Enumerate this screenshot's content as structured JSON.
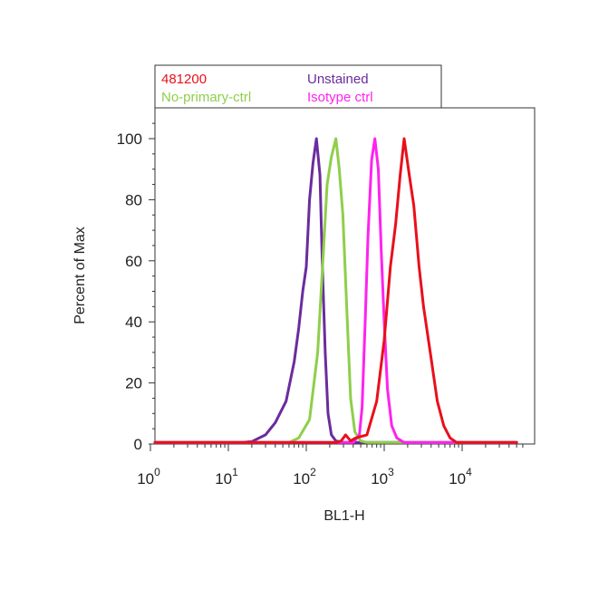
{
  "chart_data": {
    "type": "line",
    "xlabel": "BL1-H",
    "ylabel": "Percent of Max",
    "x_scale": "log",
    "xlim": [
      1,
      60000
    ],
    "ylim": [
      0,
      110
    ],
    "x_ticks": [
      {
        "value": 1,
        "base": "10",
        "exp": "0"
      },
      {
        "value": 10,
        "base": "10",
        "exp": "1"
      },
      {
        "value": 100,
        "base": "10",
        "exp": "2"
      },
      {
        "value": 1000,
        "base": "10",
        "exp": "3"
      },
      {
        "value": 10000,
        "base": "10",
        "exp": "4"
      }
    ],
    "y_ticks": [
      {
        "value": 0,
        "label": "0"
      },
      {
        "value": 20,
        "label": "20"
      },
      {
        "value": 40,
        "label": "40"
      },
      {
        "value": 60,
        "label": "60"
      },
      {
        "value": 80,
        "label": "80"
      },
      {
        "value": 100,
        "label": "100"
      }
    ],
    "legend_placement": "top",
    "series": [
      {
        "name": "Unstained",
        "color": "#6a2c9e",
        "points": [
          [
            1,
            0.5
          ],
          [
            15,
            0.5
          ],
          [
            20,
            0.8
          ],
          [
            30,
            3
          ],
          [
            40,
            7
          ],
          [
            55,
            14
          ],
          [
            70,
            27
          ],
          [
            80,
            38
          ],
          [
            90,
            50
          ],
          [
            100,
            58
          ],
          [
            110,
            80
          ],
          [
            122,
            92
          ],
          [
            135,
            100
          ],
          [
            150,
            88
          ],
          [
            160,
            60
          ],
          [
            175,
            30
          ],
          [
            190,
            10
          ],
          [
            210,
            3
          ],
          [
            240,
            1
          ],
          [
            300,
            0.5
          ],
          [
            50000,
            0.5
          ]
        ]
      },
      {
        "name": "No-primary-ctrl",
        "color": "#8fce4b",
        "points": [
          [
            1,
            0.5
          ],
          [
            60,
            0.5
          ],
          [
            80,
            2
          ],
          [
            110,
            8
          ],
          [
            140,
            30
          ],
          [
            165,
            62
          ],
          [
            185,
            85
          ],
          [
            210,
            94
          ],
          [
            240,
            100
          ],
          [
            265,
            90
          ],
          [
            295,
            75
          ],
          [
            330,
            45
          ],
          [
            370,
            15
          ],
          [
            420,
            4
          ],
          [
            500,
            1
          ],
          [
            600,
            0.5
          ],
          [
            50000,
            0.5
          ]
        ]
      },
      {
        "name": "Isotype ctrl",
        "color": "#ff22ee",
        "points": [
          [
            1,
            0.5
          ],
          [
            400,
            0.5
          ],
          [
            480,
            3
          ],
          [
            520,
            12
          ],
          [
            570,
            40
          ],
          [
            620,
            68
          ],
          [
            690,
            93
          ],
          [
            760,
            100
          ],
          [
            840,
            90
          ],
          [
            920,
            62
          ],
          [
            1000,
            40
          ],
          [
            1100,
            18
          ],
          [
            1250,
            6
          ],
          [
            1450,
            2
          ],
          [
            1800,
            0.5
          ],
          [
            50000,
            0.5
          ]
        ]
      },
      {
        "name": "481200",
        "color": "#e8101a",
        "points": [
          [
            1,
            0.5
          ],
          [
            240,
            0.5
          ],
          [
            280,
            1
          ],
          [
            320,
            3
          ],
          [
            370,
            1
          ],
          [
            430,
            2
          ],
          [
            600,
            3
          ],
          [
            800,
            14
          ],
          [
            1000,
            34
          ],
          [
            1200,
            58
          ],
          [
            1400,
            72
          ],
          [
            1600,
            88
          ],
          [
            1800,
            100
          ],
          [
            2100,
            88
          ],
          [
            2400,
            78
          ],
          [
            2800,
            58
          ],
          [
            3200,
            45
          ],
          [
            4000,
            28
          ],
          [
            4800,
            14
          ],
          [
            5800,
            6
          ],
          [
            7000,
            2
          ],
          [
            8500,
            0.5
          ],
          [
            50000,
            0.5
          ]
        ]
      }
    ],
    "legend": [
      {
        "label": "481200",
        "color": "#e8101a"
      },
      {
        "label": "Unstained",
        "color": "#6a2c9e"
      },
      {
        "label": "No-primary-ctrl",
        "color": "#8fce4b"
      },
      {
        "label": "Isotype ctrl",
        "color": "#ff22ee"
      }
    ]
  }
}
